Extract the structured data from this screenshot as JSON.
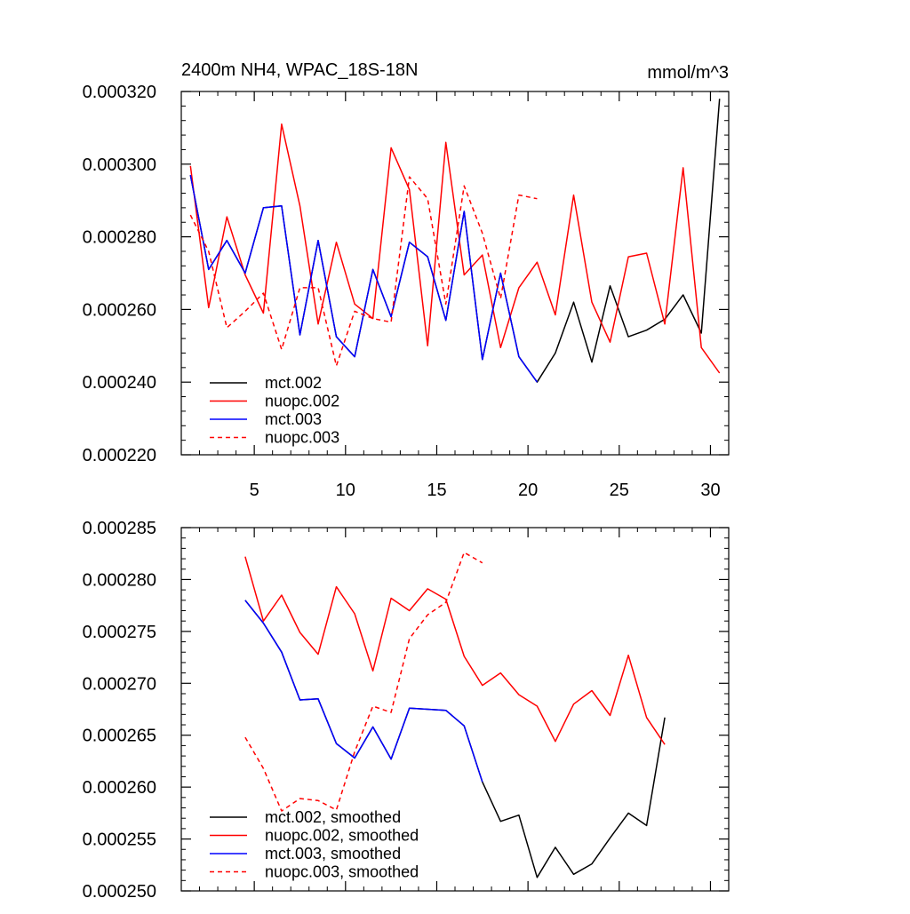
{
  "chart_data": [
    {
      "type": "line",
      "title": "2400m NH4, WPAC_18S-18N",
      "units_label": "mmol/m^3",
      "xlim": [
        1,
        31
      ],
      "ylim": [
        0.00022,
        0.00032
      ],
      "x_ticks": [
        5,
        10,
        15,
        20,
        25,
        30
      ],
      "x_tick_labels": [
        "5",
        "10",
        "15",
        "20",
        "25",
        "30"
      ],
      "y_ticks": [
        0.00022,
        0.00024,
        0.00026,
        0.00028,
        0.0003,
        0.00032
      ],
      "y_tick_labels": [
        "0.000220",
        "0.000240",
        "0.000260",
        "0.000280",
        "0.000300",
        "0.000320"
      ],
      "legend": "bottom-left",
      "series": [
        {
          "name": "mct.002",
          "color": "#000000",
          "dash": "solid",
          "x": [
            1.5,
            2.5,
            3.5,
            4.5,
            5.5,
            6.5,
            7.5,
            8.5,
            9.5,
            10.5,
            11.5,
            12.5,
            13.5,
            14.5,
            15.5,
            16.5,
            17.5,
            18.5,
            19.5,
            20.5,
            21.5,
            22.5,
            23.5,
            24.5,
            25.5,
            26.5,
            27.5,
            28.5,
            29.5,
            30.5
          ],
          "values": [
            0.000297,
            0.000271,
            0.000279,
            0.00027,
            0.000288,
            0.0002885,
            0.000253,
            0.000279,
            0.0002525,
            0.000247,
            0.000271,
            0.000258,
            0.0002785,
            0.0002745,
            0.000257,
            0.000287,
            0.0002462,
            0.00027,
            0.000247,
            0.00024,
            0.000248,
            0.000262,
            0.0002455,
            0.0002665,
            0.0002525,
            0.0002543,
            0.0002573,
            0.000264,
            0.0002535,
            0.000318
          ]
        },
        {
          "name": "nuopc.002",
          "color": "#ff0000",
          "dash": "solid",
          "x": [
            1.5,
            2.5,
            3.5,
            4.5,
            5.5,
            6.5,
            7.5,
            8.5,
            9.5,
            10.5,
            11.5,
            12.5,
            13.5,
            14.5,
            15.5,
            16.5,
            17.5,
            18.5,
            19.5,
            20.5,
            21.5,
            22.5,
            23.5,
            24.5,
            25.5,
            26.5,
            27.5,
            28.5,
            29.5,
            30.5
          ],
          "values": [
            0.0002995,
            0.0002605,
            0.0002855,
            0.0002695,
            0.000259,
            0.000311,
            0.0002885,
            0.000256,
            0.0002785,
            0.0002615,
            0.0002575,
            0.0003045,
            0.000293,
            0.00025,
            0.000306,
            0.0002695,
            0.000275,
            0.0002495,
            0.000266,
            0.000273,
            0.0002585,
            0.0002915,
            0.000262,
            0.000251,
            0.0002745,
            0.0002755,
            0.000256,
            0.000299,
            0.0002495,
            0.0002425
          ]
        },
        {
          "name": "mct.003",
          "color": "#0000ff",
          "dash": "solid",
          "x": [
            1.5,
            2.5,
            3.5,
            4.5,
            5.5,
            6.5,
            7.5,
            8.5,
            9.5,
            10.5,
            11.5,
            12.5,
            13.5,
            14.5,
            15.5,
            16.5,
            17.5,
            18.5,
            19.5,
            20.5
          ],
          "values": [
            0.000297,
            0.000271,
            0.000279,
            0.00027,
            0.000288,
            0.0002885,
            0.000253,
            0.000279,
            0.0002525,
            0.000247,
            0.000271,
            0.000258,
            0.0002785,
            0.0002745,
            0.000257,
            0.000287,
            0.0002462,
            0.00027,
            0.000247,
            0.00024
          ]
        },
        {
          "name": "nuopc.003",
          "color": "#ff0000",
          "dash": "dashed",
          "x": [
            1.5,
            2.5,
            3.5,
            4.5,
            5.5,
            6.5,
            7.5,
            8.5,
            9.5,
            10.5,
            11.5,
            12.5,
            13.5,
            14.5,
            15.5,
            16.5,
            17.5,
            18.5,
            19.5,
            20.5
          ],
          "values": [
            0.000286,
            0.000276,
            0.000255,
            0.0002595,
            0.0002645,
            0.000249,
            0.000266,
            0.000266,
            0.0002445,
            0.0002595,
            0.0002575,
            0.0002565,
            0.0002965,
            0.0002905,
            0.0002615,
            0.000294,
            0.000281,
            0.000263,
            0.0002915,
            0.0002905
          ]
        }
      ]
    },
    {
      "type": "line",
      "xlim": [
        1,
        31
      ],
      "ylim": [
        0.00025,
        0.000285
      ],
      "x_ticks": [
        5,
        10,
        15,
        20,
        25,
        30
      ],
      "y_ticks": [
        0.00025,
        0.000255,
        0.00026,
        0.000265,
        0.00027,
        0.000275,
        0.00028,
        0.000285
      ],
      "y_tick_labels": [
        "0.000250",
        "0.000255",
        "0.000260",
        "0.000265",
        "0.000270",
        "0.000275",
        "0.000280",
        "0.000285"
      ],
      "legend": "bottom-left",
      "series": [
        {
          "name": "mct.002, smoothed",
          "color": "#000000",
          "dash": "solid",
          "x": [
            4.5,
            5.5,
            6.5,
            7.5,
            8.5,
            9.5,
            10.5,
            11.5,
            12.5,
            13.5,
            14.5,
            15.5,
            16.5,
            17.5,
            18.5,
            19.5,
            20.5,
            21.5,
            22.5,
            23.5,
            24.5,
            25.5,
            26.5,
            27.5
          ],
          "values": [
            0.000278,
            0.0002758,
            0.000273,
            0.0002684,
            0.0002685,
            0.0002642,
            0.0002628,
            0.0002658,
            0.0002627,
            0.0002676,
            0.0002675,
            0.0002674,
            0.0002659,
            0.0002605,
            0.0002567,
            0.0002573,
            0.0002513,
            0.0002542,
            0.0002516,
            0.0002526,
            0.0002551,
            0.0002575,
            0.0002563,
            0.0002667
          ]
        },
        {
          "name": "nuopc.002, smoothed",
          "color": "#ff0000",
          "dash": "solid",
          "x": [
            4.5,
            5.5,
            6.5,
            7.5,
            8.5,
            9.5,
            10.5,
            11.5,
            12.5,
            13.5,
            14.5,
            15.5,
            16.5,
            17.5,
            18.5,
            19.5,
            20.5,
            21.5,
            22.5,
            23.5,
            24.5,
            25.5,
            26.5,
            27.5
          ],
          "values": [
            0.0002822,
            0.000276,
            0.0002785,
            0.0002749,
            0.0002728,
            0.0002793,
            0.0002767,
            0.0002712,
            0.0002782,
            0.000277,
            0.0002791,
            0.0002781,
            0.0002726,
            0.0002698,
            0.000271,
            0.0002689,
            0.0002678,
            0.0002644,
            0.000268,
            0.0002693,
            0.0002669,
            0.0002727,
            0.0002667,
            0.0002641
          ]
        },
        {
          "name": "mct.003, smoothed",
          "color": "#0000ff",
          "dash": "solid",
          "x": [
            4.5,
            5.5,
            6.5,
            7.5,
            8.5,
            9.5,
            10.5,
            11.5,
            12.5,
            13.5,
            14.5,
            15.5,
            16.5,
            17.5
          ],
          "values": [
            0.000278,
            0.0002758,
            0.000273,
            0.0002684,
            0.0002685,
            0.0002642,
            0.0002628,
            0.0002658,
            0.0002627,
            0.0002676,
            0.0002675,
            0.0002674,
            0.0002659,
            0.0002605
          ]
        },
        {
          "name": "nuopc.003, smoothed",
          "color": "#ff0000",
          "dash": "dashed",
          "x": [
            4.5,
            5.5,
            6.5,
            7.5,
            8.5,
            9.5,
            10.5,
            11.5,
            12.5,
            13.5,
            14.5,
            15.5,
            16.5,
            17.5
          ],
          "values": [
            0.0002648,
            0.0002618,
            0.0002577,
            0.0002589,
            0.0002587,
            0.0002578,
            0.0002634,
            0.0002678,
            0.0002672,
            0.0002743,
            0.0002766,
            0.0002778,
            0.0002826,
            0.0002816
          ]
        }
      ]
    }
  ]
}
